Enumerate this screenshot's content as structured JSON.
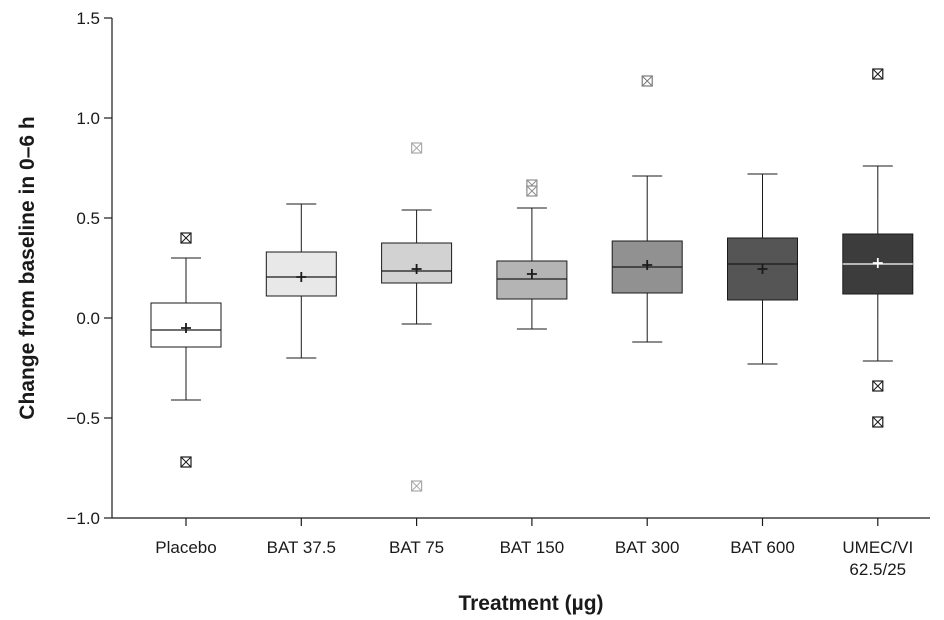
{
  "chart_data": {
    "type": "box",
    "xlabel": "Treatment (µg)",
    "ylabel": "Change from baseline in 0–6 h",
    "ylim": [
      -1.0,
      1.5
    ],
    "yticks": [
      1.5,
      1.0,
      0.5,
      0.0,
      -0.5,
      -1.0
    ],
    "ytick_labels": [
      "1.5",
      "1.0",
      "0.5",
      "0.0",
      "−0.5",
      "−1.0"
    ],
    "grid": false,
    "categories": [
      "Placebo",
      "BAT 37.5",
      "BAT 75",
      "BAT 150",
      "BAT 300",
      "BAT 600",
      "UMEC/VI 62.5/25"
    ],
    "category_label_lines": [
      [
        "Placebo"
      ],
      [
        "BAT 37.5"
      ],
      [
        "BAT 75"
      ],
      [
        "BAT 150"
      ],
      [
        "BAT 300"
      ],
      [
        "BAT 600"
      ],
      [
        "UMEC/VI",
        "62.5/25"
      ]
    ],
    "boxes": [
      {
        "name": "Placebo",
        "whisker_low": -0.41,
        "q1": -0.145,
        "median": -0.06,
        "q3": 0.075,
        "whisker_high": 0.3,
        "mean": -0.05,
        "outliers": [
          0.4,
          -0.72
        ],
        "fill": "#ffffff",
        "inner_color": "#1a1a1a",
        "outlier_color": "#1a1a1a"
      },
      {
        "name": "BAT 37.5",
        "whisker_low": -0.2,
        "q1": 0.11,
        "median": 0.205,
        "q3": 0.33,
        "whisker_high": 0.57,
        "mean": 0.205,
        "outliers": [],
        "fill": "#e8e8e8",
        "inner_color": "#1a1a1a",
        "outlier_color": "#1a1a1a"
      },
      {
        "name": "BAT 75",
        "whisker_low": -0.03,
        "q1": 0.175,
        "median": 0.235,
        "q3": 0.375,
        "whisker_high": 0.54,
        "mean": 0.245,
        "outliers": [
          0.85,
          -0.84
        ],
        "fill": "#d2d2d2",
        "inner_color": "#1a1a1a",
        "outlier_color": "#aaaaaa"
      },
      {
        "name": "BAT 150",
        "whisker_low": -0.055,
        "q1": 0.095,
        "median": 0.195,
        "q3": 0.285,
        "whisker_high": 0.55,
        "mean": 0.22,
        "outliers": [
          0.665,
          0.635
        ],
        "fill": "#b4b4b4",
        "inner_color": "#1a1a1a",
        "outlier_color": "#8f8f8f"
      },
      {
        "name": "BAT 300",
        "whisker_low": -0.12,
        "q1": 0.125,
        "median": 0.255,
        "q3": 0.385,
        "whisker_high": 0.71,
        "mean": 0.265,
        "outliers": [
          1.185
        ],
        "fill": "#919191",
        "inner_color": "#1a1a1a",
        "outlier_color": "#7a7a7a"
      },
      {
        "name": "BAT 600",
        "whisker_low": -0.23,
        "q1": 0.09,
        "median": 0.27,
        "q3": 0.4,
        "whisker_high": 0.72,
        "mean": 0.245,
        "outliers": [],
        "fill": "#555555",
        "inner_color": "#1a1a1a",
        "outlier_color": "#1a1a1a"
      },
      {
        "name": "UMEC/VI 62.5/25",
        "whisker_low": -0.215,
        "q1": 0.12,
        "median": 0.27,
        "q3": 0.42,
        "whisker_high": 0.76,
        "mean": 0.275,
        "outliers": [
          1.22,
          -0.34,
          -0.52
        ],
        "fill": "#3c3c3c",
        "inner_color": "#ffffff",
        "outlier_color": "#1a1a1a"
      }
    ]
  }
}
